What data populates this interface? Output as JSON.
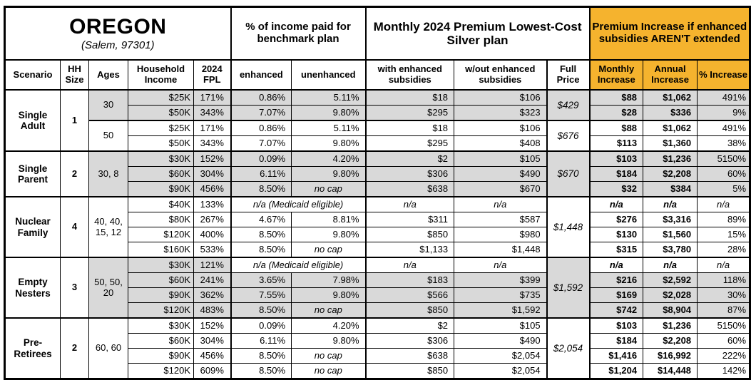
{
  "colors": {
    "accent_orange": "#F5B32E",
    "shade_gray": "#D9D9D9",
    "border_black": "#000000"
  },
  "table": {
    "region": {
      "title": "OREGON",
      "subtitle": "(Salem, 97301)"
    },
    "group_headers": {
      "benchmark": "% of income paid for benchmark plan",
      "premium": "Monthly 2024 Premium Lowest-Cost Silver plan",
      "increase": "Premium Increase if enhanced subsidies AREN'T extended"
    },
    "columns": {
      "scenario": "Scenario",
      "hh_size": "HH Size",
      "ages": "Ages",
      "income": "Household Income",
      "fpl": "2024 FPL",
      "enhanced": "enhanced",
      "unenhanced": "unenhanced",
      "with_sub": "with enhanced subsidies",
      "wout_sub": "w/out enhanced subsidies",
      "full_price": "Full Price",
      "monthly": "Monthly Increase",
      "annual": "Annual Increase",
      "pct": "% Increase"
    },
    "sections": [
      {
        "scenario": "Single Adult",
        "hh_size": "1",
        "age_groups": [
          {
            "ages": "30",
            "shade": true,
            "full_price": "$429",
            "rows": [
              {
                "income": "$25K",
                "fpl": "171%",
                "enhanced": "0.86%",
                "unenhanced": "5.11%",
                "with_sub": "$18",
                "wout_sub": "$106",
                "monthly": "$88",
                "annual": "$1,062",
                "pct": "491%"
              },
              {
                "income": "$50K",
                "fpl": "343%",
                "enhanced": "7.07%",
                "unenhanced": "9.80%",
                "with_sub": "$295",
                "wout_sub": "$323",
                "monthly": "$28",
                "annual": "$336",
                "pct": "9%"
              }
            ]
          },
          {
            "ages": "50",
            "shade": false,
            "full_price": "$676",
            "rows": [
              {
                "income": "$25K",
                "fpl": "171%",
                "enhanced": "0.86%",
                "unenhanced": "5.11%",
                "with_sub": "$18",
                "wout_sub": "$106",
                "monthly": "$88",
                "annual": "$1,062",
                "pct": "491%"
              },
              {
                "income": "$50K",
                "fpl": "343%",
                "enhanced": "7.07%",
                "unenhanced": "9.80%",
                "with_sub": "$295",
                "wout_sub": "$408",
                "monthly": "$113",
                "annual": "$1,360",
                "pct": "38%"
              }
            ]
          }
        ]
      },
      {
        "scenario": "Single Parent",
        "hh_size": "2",
        "age_groups": [
          {
            "ages": "30, 8",
            "shade": true,
            "full_price": "$670",
            "rows": [
              {
                "income": "$30K",
                "fpl": "152%",
                "enhanced": "0.09%",
                "unenhanced": "4.20%",
                "with_sub": "$2",
                "wout_sub": "$105",
                "monthly": "$103",
                "annual": "$1,236",
                "pct": "5150%"
              },
              {
                "income": "$60K",
                "fpl": "304%",
                "enhanced": "6.11%",
                "unenhanced": "9.80%",
                "with_sub": "$306",
                "wout_sub": "$490",
                "monthly": "$184",
                "annual": "$2,208",
                "pct": "60%"
              },
              {
                "income": "$90K",
                "fpl": "456%",
                "enhanced": "8.50%",
                "unenhanced": "no cap",
                "with_sub": "$638",
                "wout_sub": "$670",
                "monthly": "$32",
                "annual": "$384",
                "pct": "5%"
              }
            ]
          }
        ]
      },
      {
        "scenario": "Nuclear Family",
        "hh_size": "4",
        "age_groups": [
          {
            "ages": "40, 40, 15, 12",
            "shade": false,
            "full_price": "$1,448",
            "rows": [
              {
                "income": "$40K",
                "fpl": "133%",
                "medicaid_note": "n/a (Medicaid eligible)",
                "with_sub": "n/a",
                "wout_sub": "n/a",
                "monthly": "n/a",
                "annual": "n/a",
                "pct": "n/a"
              },
              {
                "income": "$80K",
                "fpl": "267%",
                "enhanced": "4.67%",
                "unenhanced": "8.81%",
                "with_sub": "$311",
                "wout_sub": "$587",
                "monthly": "$276",
                "annual": "$3,316",
                "pct": "89%"
              },
              {
                "income": "$120K",
                "fpl": "400%",
                "enhanced": "8.50%",
                "unenhanced": "9.80%",
                "with_sub": "$850",
                "wout_sub": "$980",
                "monthly": "$130",
                "annual": "$1,560",
                "pct": "15%"
              },
              {
                "income": "$160K",
                "fpl": "533%",
                "enhanced": "8.50%",
                "unenhanced": "no cap",
                "with_sub": "$1,133",
                "wout_sub": "$1,448",
                "monthly": "$315",
                "annual": "$3,780",
                "pct": "28%"
              }
            ]
          }
        ]
      },
      {
        "scenario": "Empty Nesters",
        "hh_size": "3",
        "age_groups": [
          {
            "ages": "50, 50, 20",
            "shade": true,
            "full_price": "$1,592",
            "rows": [
              {
                "income": "$30K",
                "fpl": "121%",
                "medicaid_note": "n/a (Medicaid eligible)",
                "with_sub": "n/a",
                "wout_sub": "n/a",
                "monthly": "n/a",
                "annual": "n/a",
                "pct": "n/a"
              },
              {
                "income": "$60K",
                "fpl": "241%",
                "enhanced": "3.65%",
                "unenhanced": "7.98%",
                "with_sub": "$183",
                "wout_sub": "$399",
                "monthly": "$216",
                "annual": "$2,592",
                "pct": "118%"
              },
              {
                "income": "$90K",
                "fpl": "362%",
                "enhanced": "7.55%",
                "unenhanced": "9.80%",
                "with_sub": "$566",
                "wout_sub": "$735",
                "monthly": "$169",
                "annual": "$2,028",
                "pct": "30%"
              },
              {
                "income": "$120K",
                "fpl": "483%",
                "enhanced": "8.50%",
                "unenhanced": "no cap",
                "with_sub": "$850",
                "wout_sub": "$1,592",
                "monthly": "$742",
                "annual": "$8,904",
                "pct": "87%"
              }
            ]
          }
        ]
      },
      {
        "scenario": "Pre-Retirees",
        "hh_size": "2",
        "age_groups": [
          {
            "ages": "60, 60",
            "shade": false,
            "full_price": "$2,054",
            "rows": [
              {
                "income": "$30K",
                "fpl": "152%",
                "enhanced": "0.09%",
                "unenhanced": "4.20%",
                "with_sub": "$2",
                "wout_sub": "$105",
                "monthly": "$103",
                "annual": "$1,236",
                "pct": "5150%"
              },
              {
                "income": "$60K",
                "fpl": "304%",
                "enhanced": "6.11%",
                "unenhanced": "9.80%",
                "with_sub": "$306",
                "wout_sub": "$490",
                "monthly": "$184",
                "annual": "$2,208",
                "pct": "60%"
              },
              {
                "income": "$90K",
                "fpl": "456%",
                "enhanced": "8.50%",
                "unenhanced": "no cap",
                "with_sub": "$638",
                "wout_sub": "$2,054",
                "monthly": "$1,416",
                "annual": "$16,992",
                "pct": "222%"
              },
              {
                "income": "$120K",
                "fpl": "609%",
                "enhanced": "8.50%",
                "unenhanced": "no cap",
                "with_sub": "$850",
                "wout_sub": "$2,054",
                "monthly": "$1,204",
                "annual": "$14,448",
                "pct": "142%"
              }
            ]
          }
        ]
      }
    ]
  }
}
